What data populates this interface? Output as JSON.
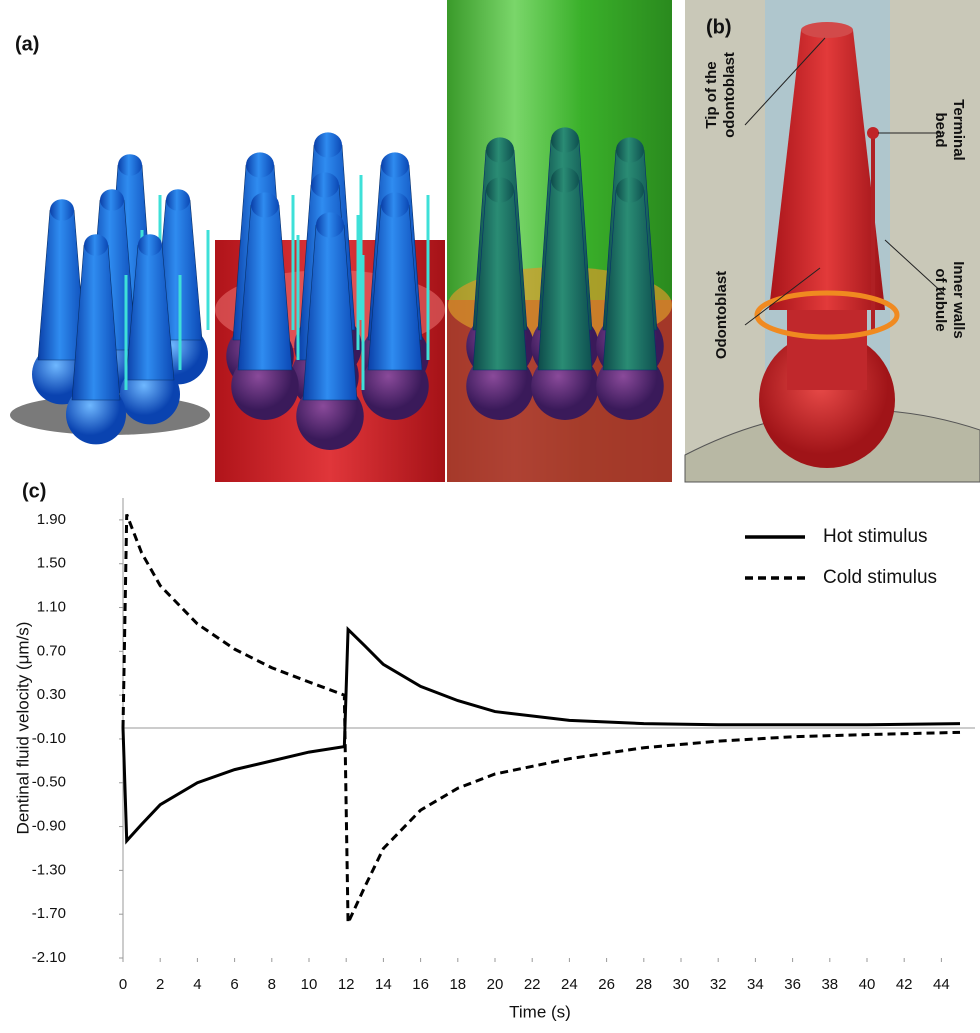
{
  "panels": {
    "a": "(a)",
    "b": "(b)",
    "c": "(c)"
  },
  "annotations": {
    "tip": [
      "Tip of the",
      "odontoblast"
    ],
    "bead": [
      "Terminal",
      "bead"
    ],
    "odontoblast": "Odontoblast",
    "walls": [
      "Inner walls",
      "of tubule"
    ]
  },
  "chart_data": {
    "type": "line",
    "xlabel": "Time (s)",
    "ylabel": "Dentinal fluid velocity (μm/s)",
    "x": [
      0,
      0.2,
      1,
      2,
      4,
      6,
      8,
      10,
      11.9,
      12.1,
      13,
      14,
      16,
      18,
      20,
      24,
      28,
      32,
      36,
      40,
      45
    ],
    "series": [
      {
        "name": "Hot stimulus",
        "color": "#000000",
        "dash": "solid",
        "values": [
          0,
          -1.03,
          -0.88,
          -0.7,
          -0.5,
          -0.38,
          -0.3,
          -0.22,
          -0.17,
          0.9,
          0.75,
          0.58,
          0.38,
          0.25,
          0.15,
          0.07,
          0.04,
          0.03,
          0.03,
          0.03,
          0.04
        ]
      },
      {
        "name": "Cold stimulus",
        "color": "#000000",
        "dash": "dashed",
        "values": [
          0,
          1.95,
          1.6,
          1.3,
          0.95,
          0.72,
          0.55,
          0.42,
          0.3,
          -1.78,
          -1.45,
          -1.1,
          -0.75,
          -0.55,
          -0.42,
          -0.28,
          -0.18,
          -0.12,
          -0.08,
          -0.06,
          -0.04
        ]
      }
    ],
    "xlim": [
      0,
      45
    ],
    "ylim": [
      -2.1,
      2.1
    ],
    "xticks": [
      0,
      2,
      4,
      6,
      8,
      10,
      12,
      14,
      16,
      18,
      20,
      22,
      24,
      26,
      28,
      30,
      32,
      34,
      36,
      38,
      40,
      42,
      44
    ],
    "yticks": [
      {
        "value": 1.9,
        "label": "1.90"
      },
      {
        "value": 1.5,
        "label": "1.50"
      },
      {
        "value": 1.1,
        "label": "1.10"
      },
      {
        "value": 0.7,
        "label": "0.70"
      },
      {
        "value": 0.3,
        "label": "0.30"
      },
      {
        "value": -0.1,
        "label": "-0.10"
      },
      {
        "value": -0.5,
        "label": "-0.50"
      },
      {
        "value": -0.9,
        "label": "-0.90"
      },
      {
        "value": -1.3,
        "label": "-1.30"
      },
      {
        "value": -1.7,
        "label": "-1.70"
      },
      {
        "value": -2.1,
        "label": "-2.10"
      }
    ],
    "legend": "upper right"
  }
}
